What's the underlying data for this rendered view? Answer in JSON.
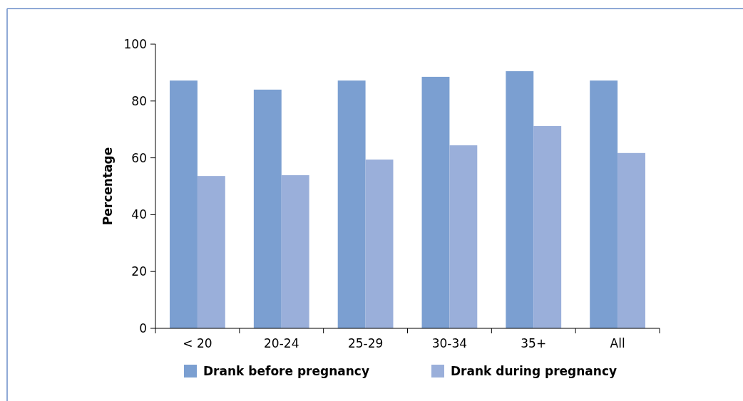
{
  "chart_data": {
    "type": "bar",
    "ylabel": "Percentage",
    "categories": [
      "< 20",
      "20-24",
      "25-29",
      "30-34",
      "35+",
      "All"
    ],
    "series": [
      {
        "name": "Drank before pregnancy",
        "color": "#7b9fd1",
        "values": [
          87.2,
          84.0,
          87.2,
          88.5,
          90.5,
          87.2
        ]
      },
      {
        "name": "Drank during pregnancy",
        "color": "#9aafda",
        "values": [
          53.6,
          53.9,
          59.4,
          64.4,
          71.2,
          61.7
        ]
      }
    ],
    "ylim": [
      0,
      100
    ],
    "yticks": [
      0,
      20,
      40,
      60,
      80,
      100
    ],
    "grid": false,
    "legend": "bottom"
  }
}
